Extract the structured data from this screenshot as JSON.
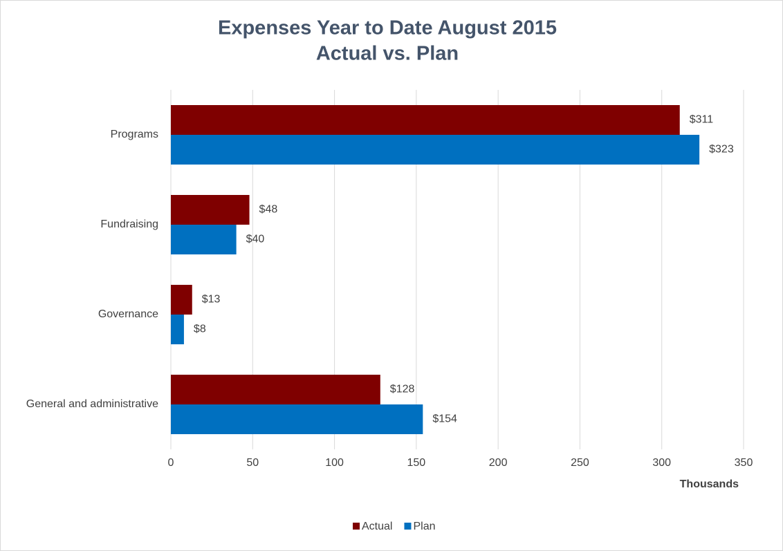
{
  "chart_data": {
    "type": "bar",
    "orientation": "horizontal",
    "title": "Expenses Year to Date August 2015",
    "subtitle": "Actual vs. Plan",
    "x_label": "Thousands",
    "categories": [
      "Programs",
      "Fundraising",
      "Governance",
      "General and administrative"
    ],
    "series": [
      {
        "name": "Actual",
        "color": "#7f0000",
        "values": [
          311,
          48,
          13,
          128
        ],
        "value_labels": [
          "$311",
          "$48",
          "$13",
          "$128"
        ]
      },
      {
        "name": "Plan",
        "color": "#0070c0",
        "values": [
          323,
          40,
          8,
          154
        ],
        "value_labels": [
          "$323",
          "$40",
          "$8",
          "$154"
        ]
      }
    ],
    "xlim": [
      0,
      350
    ],
    "xticks": [
      0,
      50,
      100,
      150,
      200,
      250,
      300,
      350
    ],
    "grid": true,
    "legend": "bottom"
  }
}
